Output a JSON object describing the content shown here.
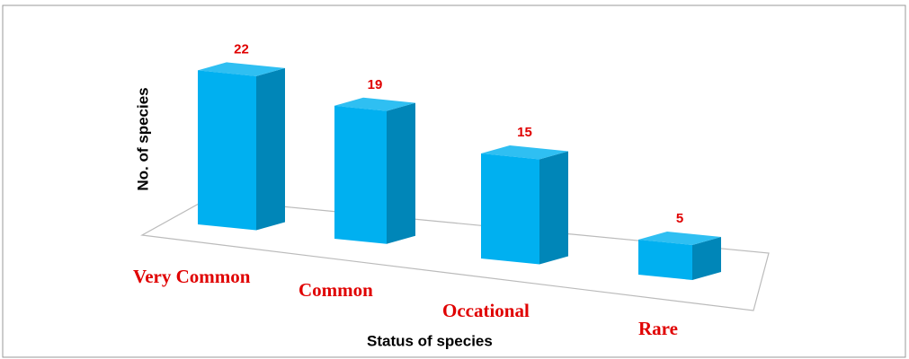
{
  "chart_data": {
    "type": "bar3d",
    "categories": [
      "Very Common",
      "Common",
      "Occational",
      "Rare"
    ],
    "values": [
      22,
      19,
      15,
      5
    ],
    "color": "#00b0f0",
    "x_label": "Status of species",
    "y_label": "No. of species"
  }
}
